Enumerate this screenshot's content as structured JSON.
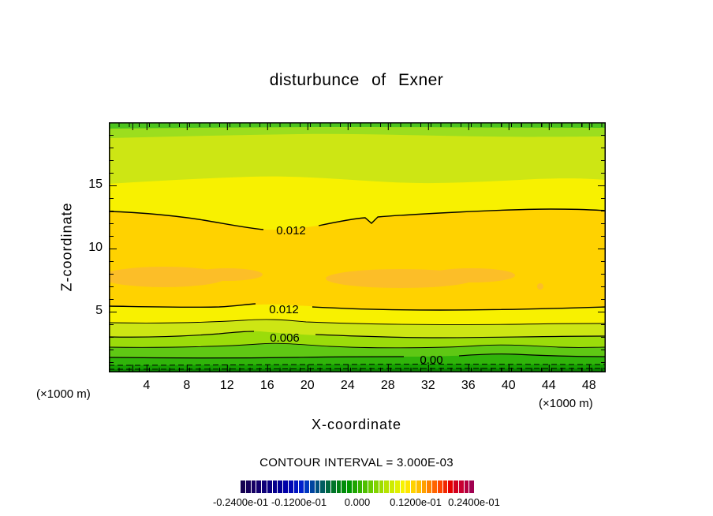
{
  "title": "disturbunce of Exner",
  "axes": {
    "x": {
      "label": "X-coordinate",
      "unit": "(×1000 m)",
      "ticks": [
        "4",
        "8",
        "12",
        "16",
        "20",
        "24",
        "28",
        "32",
        "36",
        "40",
        "44",
        "48"
      ]
    },
    "y": {
      "label": "Z-coordinate",
      "unit": "(×1000 m)",
      "ticks": [
        "15",
        "10",
        "5"
      ]
    }
  },
  "contour_labels": {
    "upper": "0.012",
    "lower": "0.012",
    "mid": "0.006",
    "zero": "0.00"
  },
  "footer": {
    "contour_interval": "CONTOUR INTERVAL = 3.000E-03"
  },
  "colorbar": {
    "labels": [
      "-0.2400e-01",
      "-0.1200e-01",
      "0.000",
      "0.1200e-01",
      "0.2400e-01"
    ],
    "colors": [
      "#140050",
      "#15005A",
      "#160064",
      "#12006E",
      "#0E0078",
      "#0A0082",
      "#06008C",
      "#020096",
      "#0000A8",
      "#0008B4",
      "#0014C0",
      "#0020CC",
      "#0038C0",
      "#0044A0",
      "#005080",
      "#005C60",
      "#006840",
      "#007428",
      "#008014",
      "#008C0A",
      "#009800",
      "#1EA400",
      "#35B400",
      "#4FC000",
      "#69CC00",
      "#83D400",
      "#9DDC00",
      "#B7E400",
      "#CDEB00",
      "#E1F000",
      "#F7F300",
      "#FFE600",
      "#FFD200",
      "#FFBE00",
      "#FFA000",
      "#FF8200",
      "#FF6400",
      "#FF4600",
      "#F02800",
      "#E60000",
      "#D2001E",
      "#C80032",
      "#B40040",
      "#A00050"
    ]
  },
  "palette": {
    "band_top_green": "#4CC41E",
    "band_yellow_green": "#9CDE1E",
    "band_chartreuse": "#CDE614",
    "band_yellow": "#F8F100",
    "band_gold": "#FFD200",
    "band_orange_max": "#FCBE28",
    "band_green_1": "#9BDC0A",
    "band_green_2": "#5FC814",
    "band_green_3": "#30B40A",
    "band_green_4": "#14A000",
    "band_green_dark": "#0A8200"
  },
  "chart_data": {
    "type": "contour",
    "title": "disturbunce of Exner",
    "xlabel": "X-coordinate",
    "ylabel": "Z-coordinate",
    "x_unit": "×1000 m",
    "z_unit": "×1000 m",
    "x_range": [
      0,
      50
    ],
    "z_range": [
      0,
      20
    ],
    "x_ticks": [
      4,
      8,
      12,
      16,
      20,
      24,
      28,
      32,
      36,
      40,
      44,
      48
    ],
    "z_ticks": [
      5,
      10,
      15
    ],
    "contour_interval": 0.003,
    "labeled_contours": [
      {
        "value": 0.012,
        "approx_z": 12.6,
        "label_x": 18,
        "note": "upper 0.012 line, dips near x=16-20"
      },
      {
        "value": 0.012,
        "approx_z": 4.9,
        "label_x": 17.5,
        "note": "lower 0.012 line"
      },
      {
        "value": 0.006,
        "approx_z": 2.8,
        "label_x": 17.7
      },
      {
        "value": 0.0,
        "approx_z": 1.2,
        "label_x": 32
      }
    ],
    "field_structure": [
      {
        "z_range": [
          13,
          20
        ],
        "value_range": [
          0.0,
          0.012
        ],
        "appearance": "green / chartreuse / yellow horizontal bands decreasing upward"
      },
      {
        "z_range": [
          5,
          13
        ],
        "value_range": [
          0.012,
          0.015
        ],
        "appearance": "gold band with darker orange local maxima near z≈7 at x≈2-10 and x≈22-38"
      },
      {
        "z_range": [
          0,
          5
        ],
        "value_range": [
          -0.006,
          0.012
        ],
        "appearance": "yellow through progressively darker greens toward ground; negative contours dashed near bottom"
      }
    ],
    "negative_contour_style": "dashed",
    "colorbar": {
      "min": -0.024,
      "max": 0.024,
      "tick_labels": [
        "-0.2400e-01",
        "-0.1200e-01",
        "0.000",
        "0.1200e-01",
        "0.2400e-01"
      ],
      "note": "tick labels overlap in the rendered figure"
    }
  }
}
